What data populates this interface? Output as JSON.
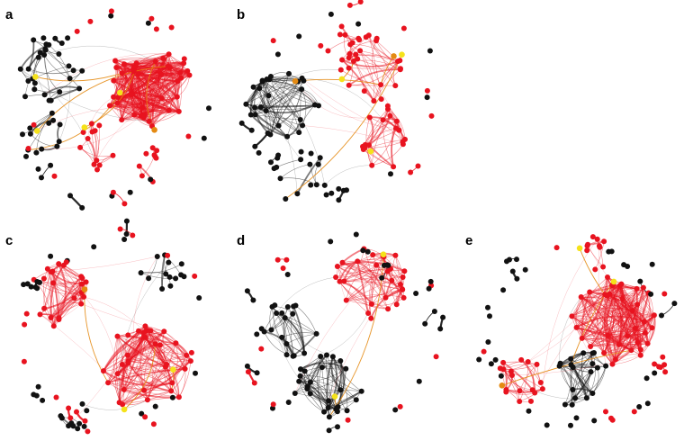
{
  "colors": {
    "red": "#e8131f",
    "black": "#111111",
    "yellow": "#f5e21a",
    "orange": "#e48a12",
    "background": "#ffffff"
  },
  "icons": {
    "node": "filled-circle",
    "edge": "curved-arc"
  },
  "panels": [
    {
      "label": "a",
      "clusters": [
        {
          "color": "red",
          "nodes": 40,
          "edge_density": 0.55,
          "weight": 1.0
        },
        {
          "color": "black",
          "nodes": 22,
          "edge_density": 0.14,
          "weight": 1.0
        },
        {
          "color": "black",
          "nodes": 12,
          "edge_density": 0.16,
          "weight": 1.0
        },
        {
          "color": "red",
          "nodes": 12,
          "edge_density": 0.25,
          "weight": 1.0
        },
        {
          "color": "red",
          "nodes": 9,
          "edge_density": 0.22,
          "weight": 1.0
        }
      ],
      "highlight_nodes": [
        {
          "color": "yellow",
          "count": 4
        },
        {
          "color": "orange",
          "count": 1
        }
      ],
      "isolated_nodes": 28
    },
    {
      "label": "b",
      "clusters": [
        {
          "color": "black",
          "nodes": 26,
          "edge_density": 0.32,
          "weight": 1.0
        },
        {
          "color": "red",
          "nodes": 22,
          "edge_density": 0.22,
          "weight": 1.0
        },
        {
          "color": "red",
          "nodes": 18,
          "edge_density": 0.26,
          "weight": 1.0
        },
        {
          "color": "red",
          "nodes": 10,
          "edge_density": 0.32,
          "weight": 1.0
        },
        {
          "color": "black",
          "nodes": 14,
          "edge_density": 0.16,
          "weight": 1.0
        }
      ],
      "highlight_nodes": [
        {
          "color": "yellow",
          "count": 3
        },
        {
          "color": "orange",
          "count": 2
        }
      ],
      "isolated_nodes": 24
    },
    {
      "label": "c",
      "clusters": [
        {
          "color": "red",
          "nodes": 20,
          "edge_density": 0.38,
          "weight": 1.0
        },
        {
          "color": "red",
          "nodes": 32,
          "edge_density": 0.42,
          "weight": 1.0
        },
        {
          "color": "black",
          "nodes": 12,
          "edge_density": 0.17,
          "weight": 1.0
        },
        {
          "color": "black",
          "nodes": 8,
          "edge_density": 0.22,
          "weight": 1.0
        }
      ],
      "highlight_nodes": [
        {
          "color": "yellow",
          "count": 2
        },
        {
          "color": "orange",
          "count": 1
        }
      ],
      "isolated_nodes": 38
    },
    {
      "label": "d",
      "clusters": [
        {
          "color": "red",
          "nodes": 28,
          "edge_density": 0.24,
          "weight": 1.0
        },
        {
          "color": "black",
          "nodes": 18,
          "edge_density": 0.24,
          "weight": 1.0
        },
        {
          "color": "black",
          "nodes": 26,
          "edge_density": 0.28,
          "weight": 1.0
        }
      ],
      "highlight_nodes": [
        {
          "color": "yellow",
          "count": 2
        },
        {
          "color": "orange",
          "count": 0
        }
      ],
      "isolated_nodes": 30
    },
    {
      "label": "e",
      "clusters": [
        {
          "color": "red",
          "nodes": 36,
          "edge_density": 0.48,
          "weight": 1.0
        },
        {
          "color": "red",
          "nodes": 16,
          "edge_density": 0.28,
          "weight": 1.0
        },
        {
          "color": "black",
          "nodes": 18,
          "edge_density": 0.34,
          "weight": 1.0
        },
        {
          "color": "red",
          "nodes": 7,
          "edge_density": 0.4,
          "weight": 1.0
        }
      ],
      "highlight_nodes": [
        {
          "color": "yellow",
          "count": 2
        },
        {
          "color": "orange",
          "count": 1
        }
      ],
      "isolated_nodes": 40
    }
  ]
}
